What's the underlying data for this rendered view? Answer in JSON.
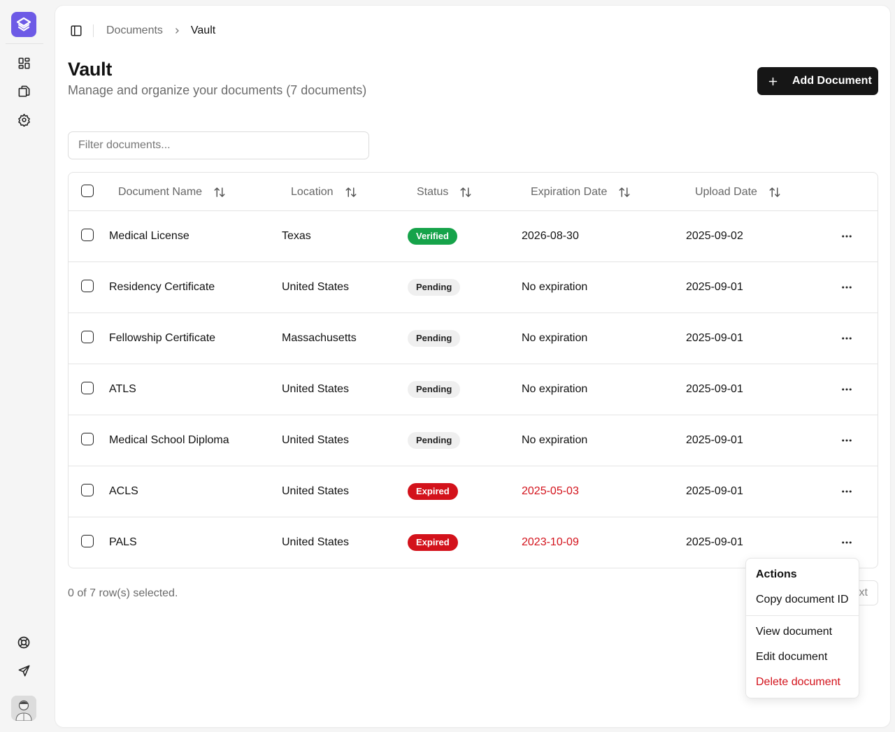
{
  "breadcrumb": [
    "Documents",
    "Vault"
  ],
  "page": {
    "title": "Vault",
    "subtitle": "Manage and organize your documents (7 documents)"
  },
  "toolbar": {
    "add_label": "Add Document"
  },
  "filter": {
    "placeholder": "Filter documents...",
    "value": ""
  },
  "table": {
    "columns": [
      "Document Name",
      "Location",
      "Status",
      "Expiration Date",
      "Upload Date"
    ],
    "rows": [
      {
        "name": "Medical License",
        "location": "Texas",
        "status": "Verified",
        "expiration": "2026-08-30",
        "upload": "2025-09-02"
      },
      {
        "name": "Residency Certificate",
        "location": "United States",
        "status": "Pending",
        "expiration": "No expiration",
        "upload": "2025-09-01"
      },
      {
        "name": "Fellowship Certificate",
        "location": "Massachusetts",
        "status": "Pending",
        "expiration": "No expiration",
        "upload": "2025-09-01"
      },
      {
        "name": "ATLS",
        "location": "United States",
        "status": "Pending",
        "expiration": "No expiration",
        "upload": "2025-09-01"
      },
      {
        "name": "Medical School Diploma",
        "location": "United States",
        "status": "Pending",
        "expiration": "No expiration",
        "upload": "2025-09-01"
      },
      {
        "name": "ACLS",
        "location": "United States",
        "status": "Expired",
        "expiration": "2025-05-03",
        "upload": "2025-09-01"
      },
      {
        "name": "PALS",
        "location": "United States",
        "status": "Expired",
        "expiration": "2023-10-09",
        "upload": "2025-09-01"
      }
    ]
  },
  "footer": {
    "selected_text": "0 of 7 row(s) selected.",
    "next_label": "Next"
  },
  "menu": {
    "label": "Actions",
    "items": [
      "Copy document ID",
      "View document",
      "Edit document",
      "Delete document"
    ]
  },
  "sidebar": {
    "icons": [
      "dashboard-icon",
      "documents-icon",
      "settings-icon",
      "help-icon",
      "send-icon"
    ]
  },
  "colors": {
    "brand": "#6d5ae6",
    "verified": "#16a34a",
    "expired": "#d3121b",
    "primary_button": "#161616"
  }
}
